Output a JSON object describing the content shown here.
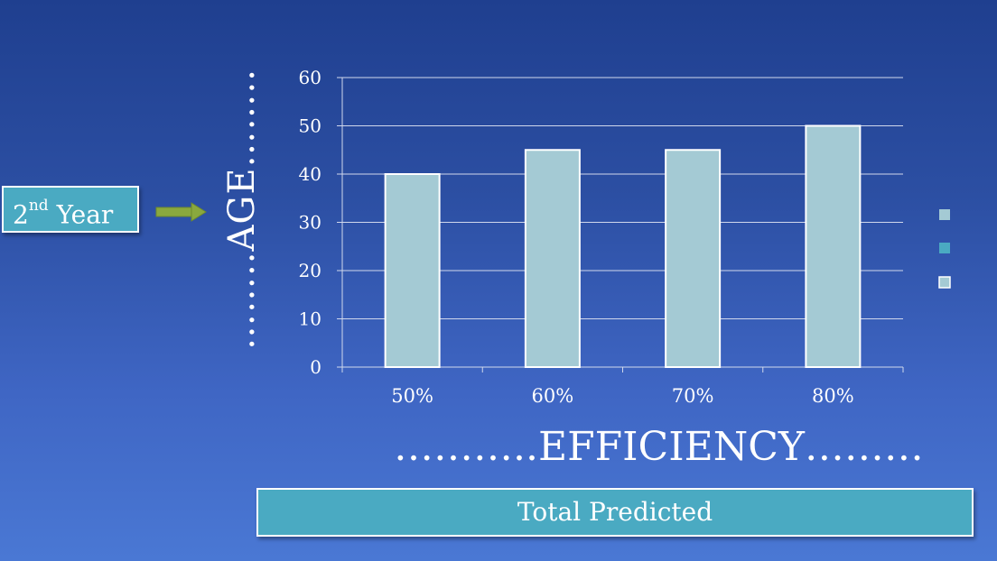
{
  "badge": {
    "text": "2",
    "sup": "nd",
    "rest": " Year"
  },
  "ylabel_text": "……..AGE……..",
  "xlabel_text": "………..EFFICIENCY………",
  "footer_text": "Total Predicted",
  "colors": {
    "bar": "#a4cad4",
    "badge": "#4aaac2",
    "legend": [
      "#a4cad4",
      "#4aaac2",
      "#a4cad4"
    ]
  },
  "chart_data": {
    "type": "bar",
    "categories": [
      "50%",
      "60%",
      "70%",
      "80%"
    ],
    "values": [
      40,
      45,
      45,
      50
    ],
    "ylim": [
      0,
      60
    ],
    "yticks": [
      0,
      10,
      20,
      30,
      40,
      50,
      60
    ],
    "grid": true,
    "legend": "right",
    "xlabel": "………..EFFICIENCY………",
    "ylabel": "……..AGE……..",
    "title": ""
  }
}
